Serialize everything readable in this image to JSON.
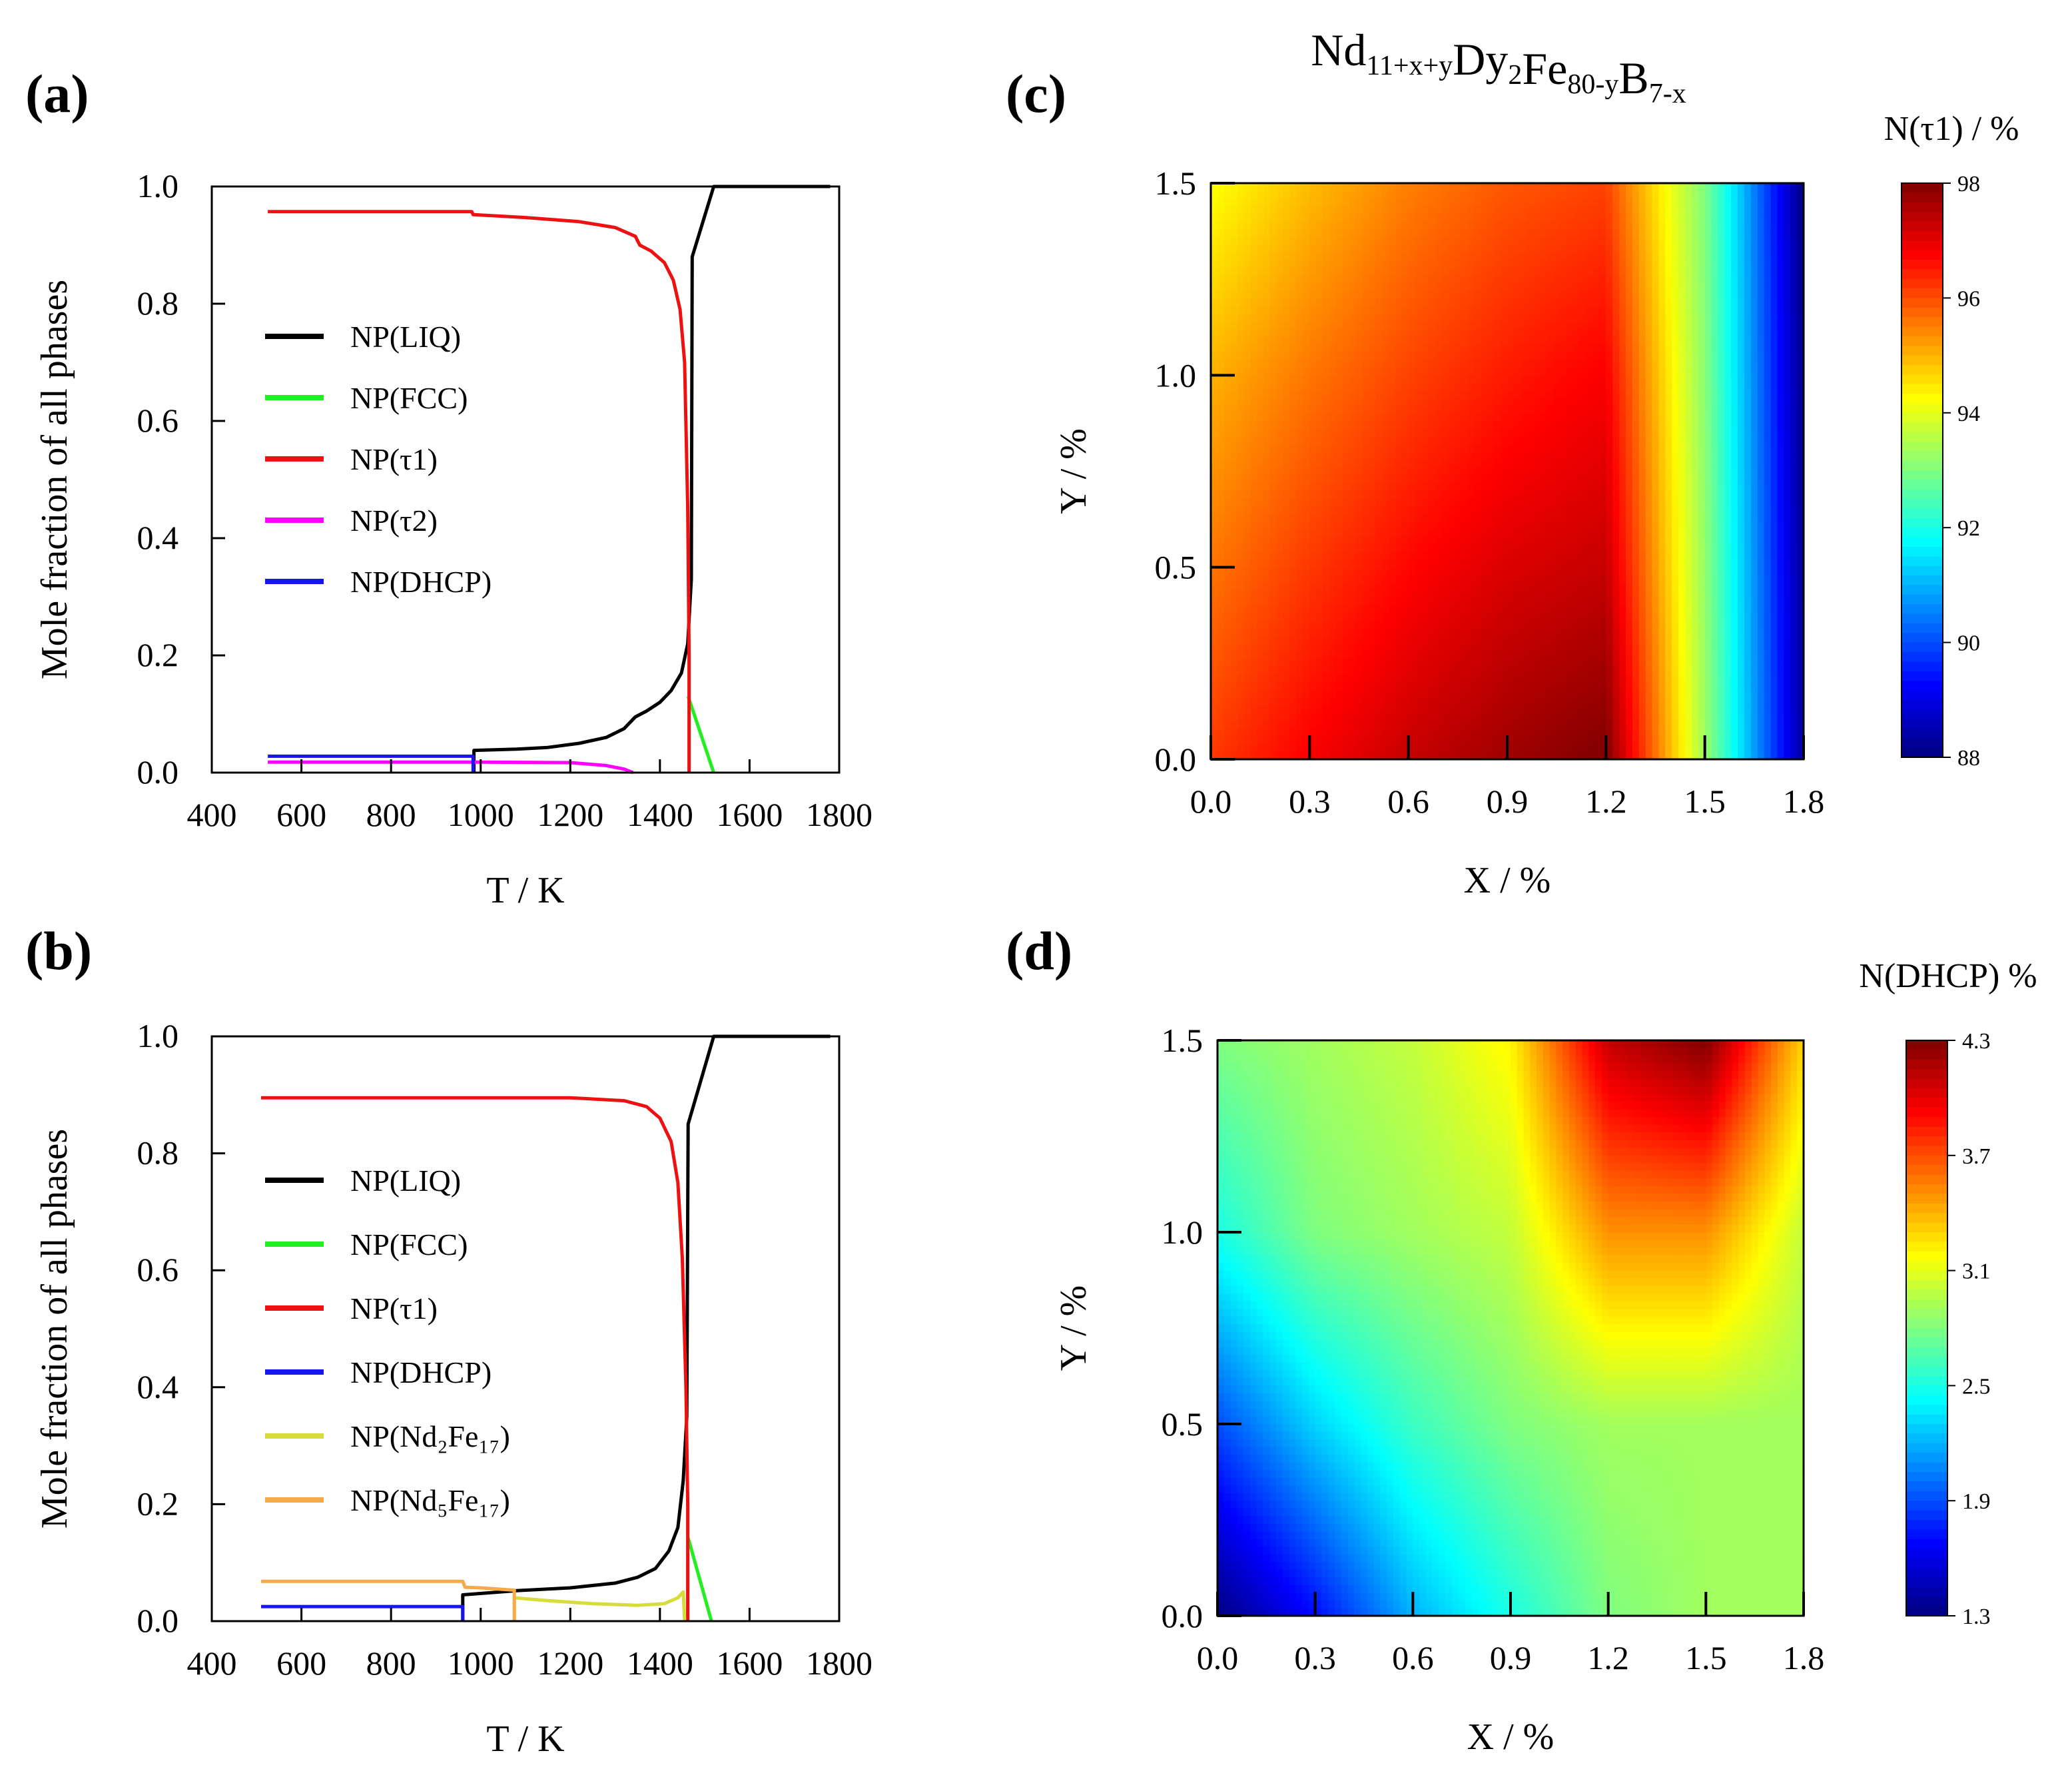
{
  "figure_title": {
    "base": [
      "Nd",
      "Dy",
      "Fe",
      "B"
    ],
    "subs": [
      "11+x+y",
      "2",
      "80-y",
      "7-x"
    ]
  },
  "panel_labels": [
    "(a)",
    "(b)",
    "(c)",
    "(d)"
  ],
  "colors": {
    "LIQ": "#000000",
    "FCC": "#22ee22",
    "tau1": "#ee1111",
    "tau2": "#ff00ff",
    "DHCP": "#1515ee",
    "Nd2Fe17": "#d6dc3a",
    "Nd5Fe17": "#f5aa4a"
  },
  "chart_data": [
    {
      "id": "a",
      "type": "line",
      "xlabel": "T / K",
      "ylabel": "Mole fraction of all phases",
      "xlim": [
        400,
        1800
      ],
      "ylim": [
        0,
        1.0
      ],
      "xticks": [
        400,
        600,
        800,
        1000,
        1200,
        1400,
        1600,
        1800
      ],
      "yticks": [
        "0.0",
        "0.2",
        "0.4",
        "0.6",
        "0.8",
        "1.0"
      ],
      "legend": [
        {
          "label": "NP(LIQ)",
          "key": "LIQ"
        },
        {
          "label": "NP(FCC)",
          "key": "FCC"
        },
        {
          "label": "NP(τ1)",
          "key": "tau1"
        },
        {
          "label": "NP(τ2)",
          "key": "tau2"
        },
        {
          "label": "NP(DHCP)",
          "key": "DHCP"
        }
      ],
      "series": [
        {
          "name": "NP(LIQ)",
          "key": "LIQ",
          "points": [
            [
              1780,
              1.0
            ],
            [
              1520,
              1.0
            ],
            [
              1472,
              0.88
            ],
            [
              1470,
              0.33
            ],
            [
              1462,
              0.22
            ],
            [
              1448,
              0.17
            ],
            [
              1425,
              0.14
            ],
            [
              1400,
              0.12
            ],
            [
              1370,
              0.105
            ],
            [
              1345,
              0.095
            ],
            [
              1320,
              0.075
            ],
            [
              1280,
              0.06
            ],
            [
              1220,
              0.05
            ],
            [
              1150,
              0.043
            ],
            [
              1080,
              0.04
            ],
            [
              985,
              0.038
            ],
            [
              985,
              0
            ]
          ]
        },
        {
          "name": "NP(FCC)",
          "key": "FCC",
          "points": [
            [
              1463,
              0.13
            ],
            [
              1520,
              0.0
            ]
          ]
        },
        {
          "name": "NP(τ1)",
          "key": "tau1",
          "points": [
            [
              525,
              0.957
            ],
            [
              980,
              0.957
            ],
            [
              983,
              0.952
            ],
            [
              1100,
              0.947
            ],
            [
              1220,
              0.94
            ],
            [
              1300,
              0.93
            ],
            [
              1345,
              0.915
            ],
            [
              1355,
              0.9
            ],
            [
              1380,
              0.89
            ],
            [
              1410,
              0.87
            ],
            [
              1430,
              0.84
            ],
            [
              1445,
              0.79
            ],
            [
              1455,
              0.7
            ],
            [
              1462,
              0.45
            ],
            [
              1465,
              0.2
            ],
            [
              1465,
              0.0
            ]
          ]
        },
        {
          "name": "NP(τ2)",
          "key": "tau2",
          "points": [
            [
              525,
              0.018
            ],
            [
              1000,
              0.018
            ],
            [
              1200,
              0.017
            ],
            [
              1280,
              0.012
            ],
            [
              1320,
              0.006
            ],
            [
              1340,
              0.0
            ]
          ]
        },
        {
          "name": "NP(DHCP)",
          "key": "DHCP",
          "points": [
            [
              525,
              0.028
            ],
            [
              983,
              0.028
            ],
            [
              983,
              0.0
            ]
          ]
        }
      ]
    },
    {
      "id": "b",
      "type": "line",
      "xlabel": "T / K",
      "ylabel": "Mole fraction of all phases",
      "xlim": [
        400,
        1800
      ],
      "ylim": [
        0,
        1.0
      ],
      "xticks": [
        400,
        600,
        800,
        1000,
        1200,
        1400,
        1600,
        1800
      ],
      "yticks": [
        "0.0",
        "0.2",
        "0.4",
        "0.6",
        "0.8",
        "1.0"
      ],
      "legend": [
        {
          "label": "NP(LIQ)",
          "key": "LIQ"
        },
        {
          "label": "NP(FCC)",
          "key": "FCC"
        },
        {
          "label": "NP(τ1)",
          "key": "tau1"
        },
        {
          "label": "NP(DHCP)",
          "key": "DHCP"
        },
        {
          "label": "NP(Nd₂Fe₁₇)",
          "key": "Nd2Fe17"
        },
        {
          "label": "NP(Nd₅Fe₁₇)",
          "key": "Nd5Fe17"
        }
      ],
      "series": [
        {
          "name": "NP(LIQ)",
          "key": "LIQ",
          "points": [
            [
              1780,
              1.0
            ],
            [
              1520,
              1.0
            ],
            [
              1463,
              0.85
            ],
            [
              1460,
              0.35
            ],
            [
              1452,
              0.24
            ],
            [
              1440,
              0.16
            ],
            [
              1420,
              0.12
            ],
            [
              1390,
              0.09
            ],
            [
              1350,
              0.075
            ],
            [
              1300,
              0.065
            ],
            [
              1200,
              0.057
            ],
            [
              1080,
              0.052
            ],
            [
              960,
              0.045
            ],
            [
              960,
              0.0
            ]
          ]
        },
        {
          "name": "NP(FCC)",
          "key": "FCC",
          "points": [
            [
              1462,
              0.145
            ],
            [
              1515,
              0.0
            ]
          ]
        },
        {
          "name": "NP(τ1)",
          "key": "tau1",
          "points": [
            [
              510,
              0.895
            ],
            [
              1200,
              0.895
            ],
            [
              1320,
              0.89
            ],
            [
              1370,
              0.88
            ],
            [
              1400,
              0.86
            ],
            [
              1425,
              0.82
            ],
            [
              1440,
              0.75
            ],
            [
              1450,
              0.62
            ],
            [
              1458,
              0.4
            ],
            [
              1462,
              0.2
            ],
            [
              1462,
              0.0
            ]
          ]
        },
        {
          "name": "NP(DHCP)",
          "key": "DHCP",
          "points": [
            [
              510,
              0.025
            ],
            [
              960,
              0.025
            ],
            [
              960,
              0.0
            ]
          ]
        },
        {
          "name": "NP(Nd₂Fe₁₇)",
          "key": "Nd2Fe17",
          "points": [
            [
              1075,
              0.0
            ],
            [
              1075,
              0.04
            ],
            [
              1150,
              0.035
            ],
            [
              1250,
              0.03
            ],
            [
              1350,
              0.027
            ],
            [
              1410,
              0.03
            ],
            [
              1440,
              0.04
            ],
            [
              1452,
              0.05
            ],
            [
              1455,
              0.0
            ]
          ]
        },
        {
          "name": "NP(Nd₅Fe₁₇)",
          "key": "Nd5Fe17",
          "points": [
            [
              510,
              0.068
            ],
            [
              960,
              0.068
            ],
            [
              965,
              0.058
            ],
            [
              1000,
              0.057
            ],
            [
              1075,
              0.053
            ],
            [
              1075,
              0.0
            ]
          ]
        }
      ]
    },
    {
      "id": "c",
      "type": "heatmap",
      "xlabel": "X / %",
      "ylabel": "Y / %",
      "xlim": [
        0,
        1.8
      ],
      "ylim": [
        0,
        1.5
      ],
      "xticks": [
        "0.0",
        "0.3",
        "0.6",
        "0.9",
        "1.2",
        "1.5",
        "1.8"
      ],
      "yticks": [
        "0.0",
        "0.5",
        "1.0",
        "1.5"
      ],
      "colorbar_title": "N(τ1) / %",
      "colorbar_range": [
        88,
        98
      ],
      "colorbar_ticks": [
        "88",
        "90",
        "92",
        "94",
        "96",
        "98"
      ],
      "grid_x": [
        0,
        0.3,
        0.6,
        0.9,
        1.2,
        1.5,
        1.8
      ],
      "grid_y": [
        0,
        0.5,
        1.0,
        1.5
      ],
      "z": [
        [
          96.2,
          96.8,
          97.3,
          97.7,
          98.0,
          93.3,
          88.3
        ],
        [
          95.6,
          96.2,
          96.7,
          97.1,
          97.3,
          93.2,
          88.2
        ],
        [
          95.0,
          95.6,
          96.1,
          96.5,
          96.8,
          93.1,
          88.1
        ],
        [
          94.2,
          94.9,
          95.5,
          95.9,
          96.1,
          93.0,
          88.0
        ]
      ]
    },
    {
      "id": "d",
      "type": "heatmap",
      "xlabel": "X / %",
      "ylabel": "Y / %",
      "xlim": [
        0,
        1.8
      ],
      "ylim": [
        0,
        1.5
      ],
      "xticks": [
        "0.0",
        "0.3",
        "0.6",
        "0.9",
        "1.2",
        "1.5",
        "1.8"
      ],
      "yticks": [
        "0.0",
        "0.5",
        "1.0",
        "1.5"
      ],
      "colorbar_title": "N(DHCP) %",
      "colorbar_range": [
        1.3,
        4.3
      ],
      "colorbar_ticks": [
        "1.3",
        "1.9",
        "2.5",
        "3.1",
        "3.7",
        "4.3"
      ],
      "grid_x": [
        0,
        0.3,
        0.6,
        0.9,
        1.2,
        1.5,
        1.8
      ],
      "grid_y": [
        0,
        0.5,
        1.0,
        1.5
      ],
      "z": [
        [
          1.3,
          1.7,
          2.2,
          2.5,
          2.8,
          2.9,
          2.9
        ],
        [
          1.9,
          2.3,
          2.6,
          2.8,
          2.9,
          2.9,
          2.9
        ],
        [
          2.5,
          2.8,
          2.9,
          3.0,
          3.5,
          3.5,
          3.0
        ],
        [
          2.8,
          2.9,
          3.0,
          3.2,
          4.1,
          4.3,
          3.3
        ]
      ]
    }
  ]
}
